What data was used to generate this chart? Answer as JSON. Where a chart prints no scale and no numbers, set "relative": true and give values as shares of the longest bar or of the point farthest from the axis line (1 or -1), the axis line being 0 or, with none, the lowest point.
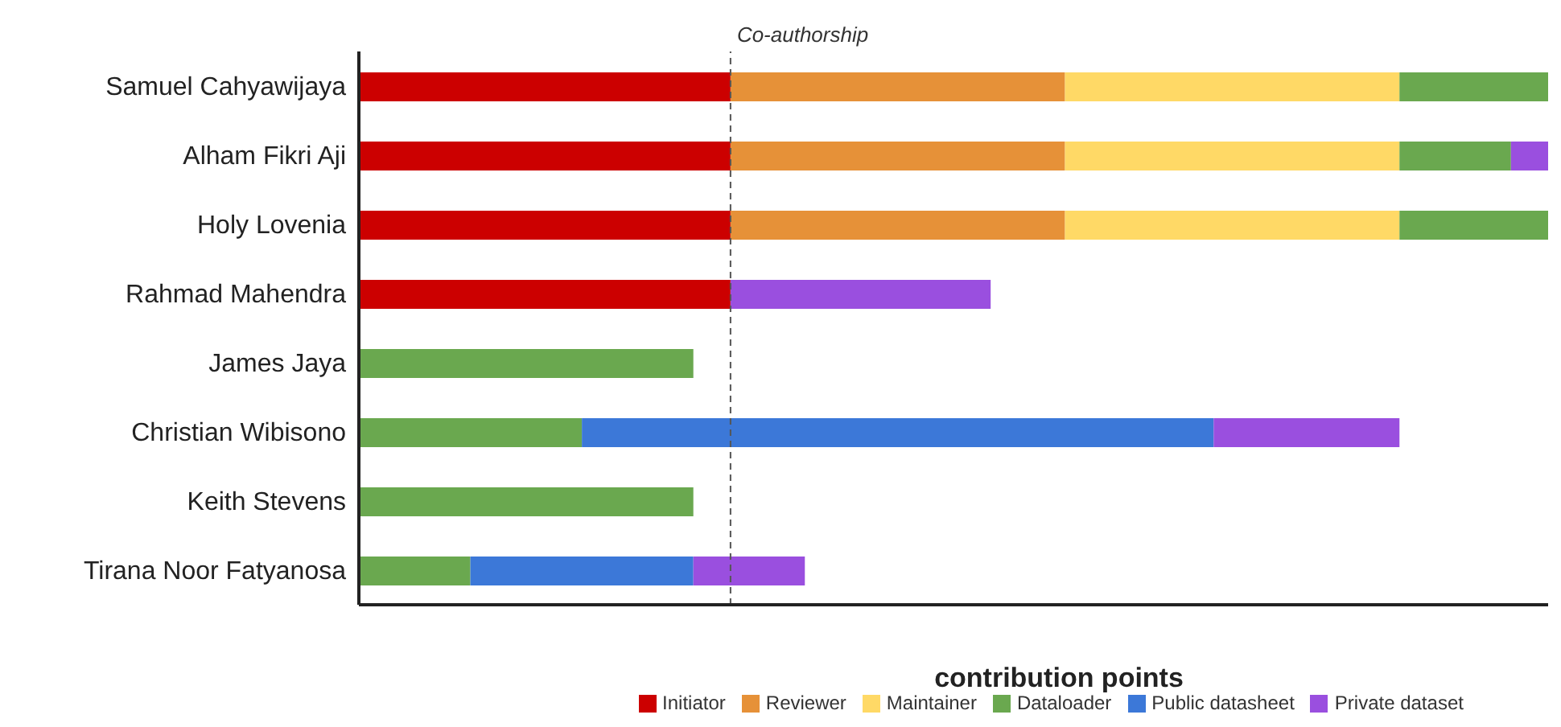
{
  "chart_data": {
    "type": "bar",
    "orientation": "horizontal",
    "stacked": true,
    "relative": true,
    "title": "contribution points",
    "categories": [
      "Samuel Cahyawijaya",
      "Alham Fikri Aji",
      "Holy Lovenia",
      "Rahmad Mahendra",
      "James Jaya",
      "Christian Wibisono",
      "Keith Stevens",
      "Tirana Noor Fatyanosa"
    ],
    "series": [
      {
        "name": "Initiator",
        "color": "#cc0000",
        "values": [
          0.3125,
          0.3125,
          0.3125,
          0.3125,
          null,
          null,
          null,
          null
        ]
      },
      {
        "name": "Reviewer",
        "color": "#e69138",
        "values": [
          0.28125,
          0.28125,
          0.28125,
          null,
          null,
          null,
          null,
          null
        ]
      },
      {
        "name": "Maintainer",
        "color": "#ffd966",
        "values": [
          0.28125,
          0.28125,
          0.28125,
          null,
          null,
          null,
          null,
          null
        ]
      },
      {
        "name": "Dataloader",
        "color": "#6aa84f",
        "values": [
          0.125,
          0.09375,
          0.125,
          null,
          0.28125,
          0.1875,
          0.28125,
          0.09375
        ]
      },
      {
        "name": "Public datasheet",
        "color": "#3c78d8",
        "values": [
          null,
          null,
          null,
          null,
          null,
          0.53125,
          null,
          0.1875
        ]
      },
      {
        "name": "Private dataset",
        "color": "#9a4fdf",
        "values": [
          null,
          0.03125,
          null,
          0.21875,
          null,
          0.15625,
          null,
          0.09375
        ]
      }
    ],
    "ref_lines": [
      {
        "axis": "x",
        "value": 0.3125,
        "label": "Co-authorship",
        "line_style": "dashed",
        "color": "#555555"
      }
    ],
    "legend": "bottom",
    "grid": false
  }
}
